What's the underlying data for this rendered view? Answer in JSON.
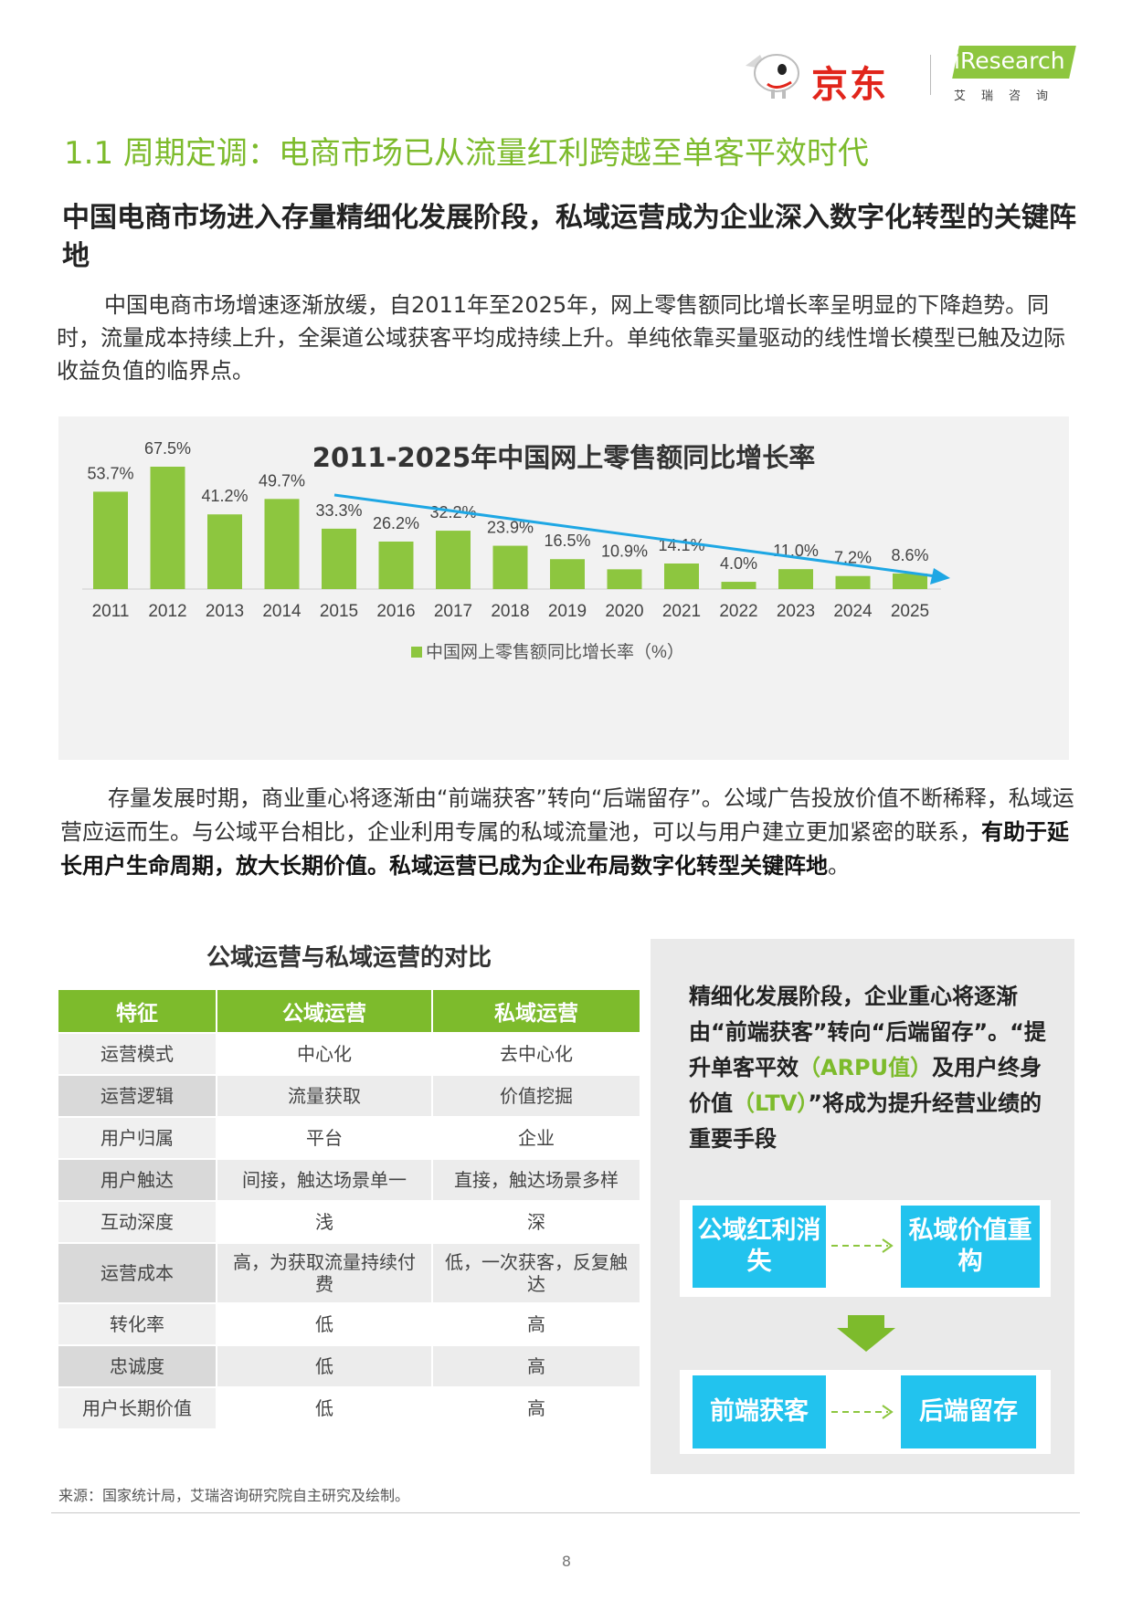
{
  "header": {
    "jd_logo_text": "京东",
    "iresearch_logo_text": "iResearch",
    "iresearch_sub_text": "艾瑞咨询"
  },
  "section_title": "1.1 周期定调：电商市场已从流量红利跨越至单客平效时代",
  "headline": "中国电商市场进入存量精细化发展阶段，私域运营成为企业深入数字化转型的关键阵地",
  "paragraph1": "中国电商市场增速逐渐放缓，自2011年至2025年，网上零售额同比增长率呈明显的下降趋势。同时，流量成本持续上升，全渠道公域获客平均成持续上升。单纯依靠买量驱动的线性增长模型已触及边际收益负值的临界点。",
  "chart_data": {
    "type": "bar",
    "title": "2011-2025年中国网上零售额同比增长率",
    "categories": [
      "2011",
      "2012",
      "2013",
      "2014",
      "2015",
      "2016",
      "2017",
      "2018",
      "2019",
      "2020",
      "2021",
      "2022",
      "2023",
      "2024",
      "2025"
    ],
    "series": [
      {
        "name": "中国网上零售额同比增长率（%）",
        "values": [
          53.7,
          67.5,
          41.2,
          49.7,
          33.3,
          26.2,
          32.2,
          23.9,
          16.5,
          10.9,
          14.1,
          4.0,
          11.0,
          7.2,
          8.6
        ],
        "labels": [
          "53.7%",
          "67.5%",
          "41.2%",
          "49.7%",
          "33.3%",
          "26.2%",
          "32.2%",
          "23.9%",
          "16.5%",
          "10.9%",
          "14.1%",
          "4.0%",
          "11.0%",
          "7.2%",
          "8.6%"
        ]
      }
    ],
    "bar_color": "#8dc63f",
    "trend_arrow_color": "#1ea7e4",
    "legend_position": "bottom",
    "grid": false
  },
  "paragraph2": {
    "normal": "存量发展时期，商业重心将逐渐由“前端获客”转向“后端留存”。公域广告投放价值不断稀释，私域运营应运而生。与公域平台相比，企业利用专属的私域流量池，可以与用户建立更加紧密的联系，",
    "bold": "有助于延长用户生命周期，放大长期价值。私域运营已成为企业布局数字化转型关键阵地",
    "tail": "。"
  },
  "table": {
    "title": "公域运营与私域运营的对比",
    "headers": [
      "特征",
      "公域运营",
      "私域运营"
    ],
    "rows": [
      [
        "运营模式",
        "中心化",
        "去中心化"
      ],
      [
        "运营逻辑",
        "流量获取",
        "价值挖掘"
      ],
      [
        "用户归属",
        "平台",
        "企业"
      ],
      [
        "用户触达",
        "间接，触达场景单一",
        "直接，触达场景多样"
      ],
      [
        "互动深度",
        "浅",
        "深"
      ],
      [
        "运营成本",
        "高，为获取流量持续付费",
        "低，一次获客，反复触达"
      ],
      [
        "转化率",
        "低",
        "高"
      ],
      [
        "忠诚度",
        "低",
        "高"
      ],
      [
        "用户长期价值",
        "低",
        "高"
      ]
    ]
  },
  "side_panel": {
    "text_a": "精细化发展阶段，企业重心将逐渐由“前端获客”转向“后端留存”。“提升单客平效",
    "text_b": "（ARPU值）",
    "text_c": "及用户终身价值",
    "text_d": "（LTV）",
    "text_e": "”将成为提升经营业绩的重要手段",
    "flow_top_left": "公域红利消失",
    "flow_top_right": "私域价值重构",
    "flow_bottom_left": "前端获客",
    "flow_bottom_right": "后端留存"
  },
  "source": "来源：国家统计局，艾瑞咨询研究院自主研究及绘制。",
  "page_number": "8"
}
